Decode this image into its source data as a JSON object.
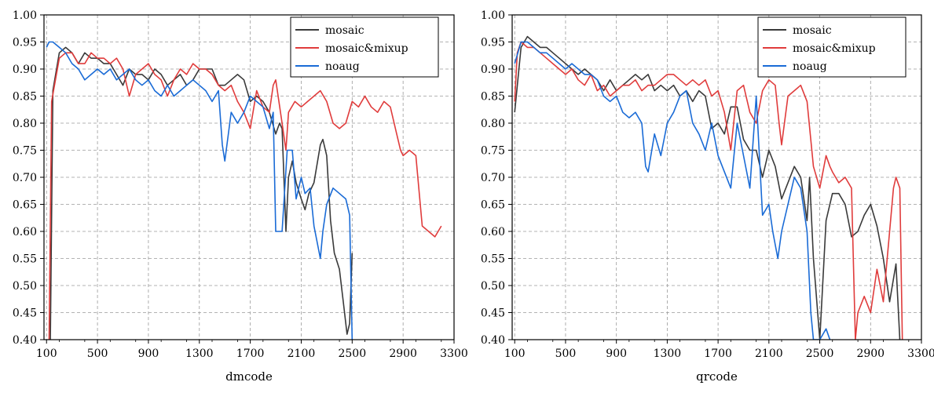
{
  "chart_data": [
    {
      "type": "line",
      "xlabel": "dmcode",
      "ylabel": "",
      "xlim": [
        80,
        3300
      ],
      "ylim": [
        0.4,
        1.0
      ],
      "xticks": [
        100,
        500,
        900,
        1300,
        1700,
        2100,
        2500,
        2900,
        3300
      ],
      "yticks": [
        0.4,
        0.45,
        0.5,
        0.55,
        0.6,
        0.65,
        0.7,
        0.75,
        0.8,
        0.85,
        0.9,
        0.95,
        1.0
      ],
      "grid": true,
      "legend_position": "top-right",
      "series": [
        {
          "name": "mosaic",
          "color": "#3a3a3a",
          "x": [
            130,
            150,
            200,
            250,
            300,
            350,
            400,
            450,
            500,
            550,
            600,
            650,
            700,
            750,
            800,
            850,
            900,
            950,
            1000,
            1050,
            1100,
            1150,
            1200,
            1250,
            1300,
            1350,
            1400,
            1450,
            1500,
            1550,
            1600,
            1650,
            1700,
            1750,
            1800,
            1850,
            1900,
            1930,
            1950,
            1980,
            2000,
            2030,
            2060,
            2100,
            2130,
            2160,
            2200,
            2250,
            2270,
            2300,
            2330,
            2360,
            2400,
            2430,
            2460,
            2480,
            2500
          ],
          "y": [
            0.4,
            0.86,
            0.93,
            0.94,
            0.93,
            0.91,
            0.93,
            0.92,
            0.92,
            0.91,
            0.91,
            0.89,
            0.87,
            0.9,
            0.89,
            0.89,
            0.88,
            0.9,
            0.89,
            0.87,
            0.88,
            0.89,
            0.87,
            0.88,
            0.9,
            0.9,
            0.9,
            0.87,
            0.87,
            0.88,
            0.89,
            0.88,
            0.84,
            0.85,
            0.84,
            0.82,
            0.78,
            0.8,
            0.79,
            0.6,
            0.7,
            0.73,
            0.69,
            0.66,
            0.64,
            0.67,
            0.69,
            0.76,
            0.77,
            0.74,
            0.62,
            0.56,
            0.53,
            0.47,
            0.41,
            0.43,
            0.56
          ]
        },
        {
          "name": "mosaic&mixup",
          "color": "#e03c3c",
          "x": [
            120,
            140,
            170,
            200,
            250,
            300,
            350,
            400,
            450,
            500,
            550,
            600,
            650,
            700,
            750,
            800,
            850,
            900,
            950,
            1000,
            1050,
            1100,
            1150,
            1200,
            1250,
            1300,
            1350,
            1400,
            1450,
            1500,
            1550,
            1600,
            1650,
            1700,
            1750,
            1800,
            1850,
            1880,
            1900,
            1950,
            1980,
            2000,
            2050,
            2100,
            2150,
            2200,
            2250,
            2300,
            2350,
            2400,
            2450,
            2500,
            2550,
            2600,
            2650,
            2700,
            2750,
            2800,
            2850,
            2880,
            2900,
            2950,
            3000,
            3050,
            3100,
            3150,
            3200
          ],
          "y": [
            0.4,
            0.84,
            0.88,
            0.92,
            0.93,
            0.93,
            0.91,
            0.91,
            0.93,
            0.92,
            0.92,
            0.91,
            0.92,
            0.9,
            0.85,
            0.89,
            0.9,
            0.91,
            0.89,
            0.88,
            0.85,
            0.88,
            0.9,
            0.89,
            0.91,
            0.9,
            0.9,
            0.89,
            0.87,
            0.86,
            0.87,
            0.84,
            0.82,
            0.79,
            0.86,
            0.83,
            0.82,
            0.87,
            0.88,
            0.8,
            0.75,
            0.82,
            0.84,
            0.83,
            0.84,
            0.85,
            0.86,
            0.84,
            0.8,
            0.79,
            0.8,
            0.84,
            0.83,
            0.85,
            0.83,
            0.82,
            0.84,
            0.83,
            0.78,
            0.75,
            0.74,
            0.75,
            0.74,
            0.61,
            0.6,
            0.59,
            0.61
          ]
        },
        {
          "name": "noaug",
          "color": "#1a6bd6",
          "x": [
            100,
            120,
            150,
            200,
            250,
            300,
            350,
            400,
            450,
            500,
            550,
            600,
            650,
            700,
            750,
            800,
            850,
            900,
            950,
            1000,
            1050,
            1100,
            1150,
            1200,
            1250,
            1300,
            1350,
            1400,
            1450,
            1480,
            1500,
            1550,
            1600,
            1650,
            1700,
            1750,
            1800,
            1850,
            1880,
            1900,
            1950,
            1990,
            2030,
            2060,
            2100,
            2130,
            2170,
            2200,
            2250,
            2270,
            2300,
            2350,
            2400,
            2450,
            2480,
            2500
          ],
          "y": [
            0.94,
            0.95,
            0.95,
            0.94,
            0.93,
            0.91,
            0.9,
            0.88,
            0.89,
            0.9,
            0.89,
            0.9,
            0.88,
            0.89,
            0.9,
            0.88,
            0.87,
            0.88,
            0.86,
            0.85,
            0.87,
            0.85,
            0.86,
            0.87,
            0.88,
            0.87,
            0.86,
            0.84,
            0.86,
            0.76,
            0.73,
            0.82,
            0.8,
            0.82,
            0.85,
            0.84,
            0.83,
            0.79,
            0.82,
            0.6,
            0.6,
            0.75,
            0.75,
            0.66,
            0.7,
            0.67,
            0.68,
            0.61,
            0.55,
            0.6,
            0.65,
            0.68,
            0.67,
            0.66,
            0.63,
            0.4
          ]
        }
      ]
    },
    {
      "type": "line",
      "xlabel": "qrcode",
      "ylabel": "",
      "xlim": [
        80,
        3300
      ],
      "ylim": [
        0.4,
        1.0
      ],
      "xticks": [
        100,
        500,
        900,
        1300,
        1700,
        2100,
        2500,
        2900,
        3300
      ],
      "yticks": [
        0.4,
        0.45,
        0.5,
        0.55,
        0.6,
        0.65,
        0.7,
        0.75,
        0.8,
        0.85,
        0.9,
        0.95,
        1.0
      ],
      "grid": true,
      "legend_position": "top-right",
      "series": [
        {
          "name": "mosaic",
          "color": "#3a3a3a",
          "x": [
            100,
            150,
            200,
            250,
            300,
            350,
            400,
            450,
            500,
            550,
            600,
            650,
            700,
            750,
            800,
            850,
            900,
            950,
            1000,
            1050,
            1100,
            1150,
            1200,
            1250,
            1300,
            1350,
            1400,
            1450,
            1500,
            1550,
            1600,
            1650,
            1700,
            1750,
            1800,
            1850,
            1900,
            1950,
            2000,
            2050,
            2100,
            2150,
            2200,
            2250,
            2300,
            2350,
            2400,
            2420,
            2450,
            2500,
            2550,
            2600,
            2650,
            2700,
            2750,
            2800,
            2850,
            2900,
            2950,
            3000,
            3050,
            3100,
            3130
          ],
          "y": [
            0.82,
            0.94,
            0.96,
            0.95,
            0.94,
            0.94,
            0.93,
            0.92,
            0.91,
            0.9,
            0.89,
            0.9,
            0.89,
            0.88,
            0.86,
            0.88,
            0.86,
            0.87,
            0.88,
            0.89,
            0.88,
            0.89,
            0.86,
            0.87,
            0.86,
            0.87,
            0.85,
            0.86,
            0.84,
            0.86,
            0.85,
            0.79,
            0.8,
            0.78,
            0.83,
            0.83,
            0.77,
            0.75,
            0.75,
            0.7,
            0.75,
            0.72,
            0.66,
            0.69,
            0.72,
            0.7,
            0.62,
            0.7,
            0.55,
            0.4,
            0.62,
            0.67,
            0.67,
            0.65,
            0.59,
            0.6,
            0.63,
            0.65,
            0.61,
            0.55,
            0.47,
            0.54,
            0.4
          ]
        },
        {
          "name": "mosaic&mixup",
          "color": "#e03c3c",
          "x": [
            100,
            120,
            150,
            200,
            250,
            300,
            350,
            400,
            450,
            500,
            550,
            600,
            650,
            700,
            750,
            800,
            850,
            900,
            950,
            1000,
            1050,
            1100,
            1150,
            1200,
            1250,
            1300,
            1350,
            1400,
            1450,
            1500,
            1550,
            1600,
            1650,
            1700,
            1750,
            1800,
            1850,
            1900,
            1950,
            2000,
            2050,
            2100,
            2150,
            2180,
            2200,
            2250,
            2300,
            2350,
            2400,
            2450,
            2500,
            2550,
            2580,
            2600,
            2650,
            2700,
            2750,
            2780,
            2800,
            2850,
            2900,
            2950,
            3000,
            3050,
            3080,
            3100,
            3130,
            3150
          ],
          "y": [
            0.84,
            0.93,
            0.95,
            0.94,
            0.94,
            0.93,
            0.92,
            0.91,
            0.9,
            0.89,
            0.9,
            0.88,
            0.87,
            0.89,
            0.86,
            0.87,
            0.85,
            0.86,
            0.87,
            0.87,
            0.88,
            0.86,
            0.87,
            0.87,
            0.88,
            0.89,
            0.89,
            0.88,
            0.87,
            0.88,
            0.87,
            0.88,
            0.85,
            0.86,
            0.82,
            0.75,
            0.86,
            0.87,
            0.82,
            0.8,
            0.86,
            0.88,
            0.87,
            0.8,
            0.76,
            0.85,
            0.86,
            0.87,
            0.84,
            0.72,
            0.68,
            0.74,
            0.72,
            0.71,
            0.69,
            0.7,
            0.68,
            0.4,
            0.45,
            0.48,
            0.45,
            0.53,
            0.47,
            0.6,
            0.68,
            0.7,
            0.68,
            0.4
          ]
        },
        {
          "name": "noaug",
          "color": "#1a6bd6",
          "x": [
            100,
            150,
            200,
            250,
            300,
            350,
            400,
            450,
            500,
            550,
            600,
            650,
            700,
            750,
            800,
            850,
            900,
            950,
            1000,
            1050,
            1100,
            1130,
            1150,
            1200,
            1250,
            1300,
            1350,
            1400,
            1450,
            1500,
            1550,
            1600,
            1650,
            1700,
            1750,
            1800,
            1850,
            1900,
            1950,
            2000,
            2050,
            2100,
            2130,
            2170,
            2200,
            2250,
            2300,
            2350,
            2400,
            2430,
            2450,
            2500,
            2550,
            2580
          ],
          "y": [
            0.91,
            0.95,
            0.95,
            0.94,
            0.93,
            0.93,
            0.92,
            0.91,
            0.9,
            0.91,
            0.9,
            0.89,
            0.89,
            0.88,
            0.85,
            0.84,
            0.85,
            0.82,
            0.81,
            0.82,
            0.8,
            0.72,
            0.71,
            0.78,
            0.74,
            0.8,
            0.82,
            0.85,
            0.86,
            0.8,
            0.78,
            0.75,
            0.8,
            0.74,
            0.71,
            0.68,
            0.8,
            0.74,
            0.68,
            0.85,
            0.63,
            0.65,
            0.6,
            0.55,
            0.6,
            0.65,
            0.7,
            0.68,
            0.6,
            0.45,
            0.4,
            0.4,
            0.42,
            0.4
          ]
        }
      ]
    }
  ]
}
